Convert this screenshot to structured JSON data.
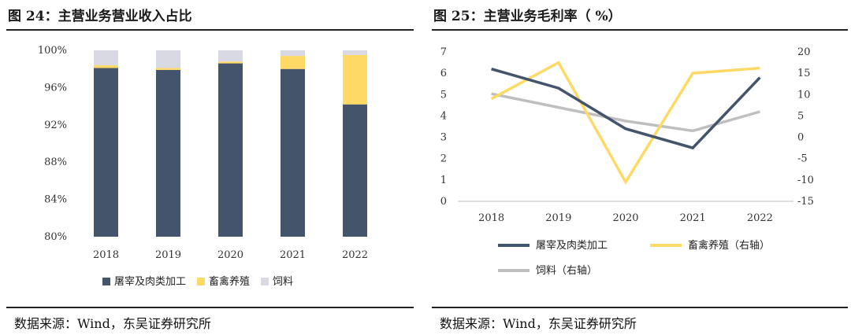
{
  "left": {
    "title": "图 24：主营业务营业收入占比",
    "source": "数据来源：Wind，东吴证券研究所",
    "chart_data": {
      "type": "bar",
      "stacked": true,
      "title": "图 24：主营业务营业收入占比",
      "categories": [
        "2018",
        "2019",
        "2020",
        "2021",
        "2022"
      ],
      "series": [
        {
          "name": "屠宰及肉类加工",
          "color": "#44546A",
          "values": [
            98.1,
            97.9,
            98.6,
            98.0,
            94.2
          ]
        },
        {
          "name": "畜禽养殖",
          "color": "#FFD966",
          "values": [
            0.3,
            0.2,
            0.2,
            1.4,
            5.3
          ]
        },
        {
          "name": "饲料",
          "color": "#D9D9E3",
          "values": [
            1.6,
            1.9,
            1.2,
            0.6,
            0.5
          ]
        }
      ],
      "yticks": [
        "80%",
        "84%",
        "88%",
        "92%",
        "96%",
        "100%"
      ],
      "ylim": [
        80,
        100
      ],
      "legend_position": "bottom"
    }
  },
  "right": {
    "title": "图 25：主营业务毛利率（ %）",
    "source": "数据来源：Wind，东吴证券研究所",
    "chart_data": {
      "type": "line",
      "title": "图 25：主营业务毛利率（ %）",
      "categories": [
        "2018",
        "2019",
        "2020",
        "2021",
        "2022"
      ],
      "series": [
        {
          "name": "屠宰及肉类加工",
          "axis": "left",
          "color": "#44546A",
          "values": [
            6.2,
            5.3,
            3.4,
            2.5,
            5.8
          ]
        },
        {
          "name": "畜禽养殖（右轴）",
          "axis": "right",
          "color": "#FFD966",
          "values": [
            9.0,
            17.5,
            -10.5,
            15.0,
            16.2
          ]
        },
        {
          "name": "饲料（右轴）",
          "axis": "right",
          "color": "#BFBFBF",
          "values": [
            10.2,
            7.0,
            3.8,
            1.5,
            6.0
          ]
        }
      ],
      "left_yticks": [
        "0",
        "1",
        "2",
        "3",
        "4",
        "5",
        "6",
        "7"
      ],
      "right_yticks": [
        "-15",
        "-10",
        "-5",
        "0",
        "5",
        "10",
        "15",
        "20"
      ],
      "ylim_left": [
        0,
        7
      ],
      "ylim_right": [
        -15,
        20
      ],
      "legend_position": "bottom"
    }
  }
}
